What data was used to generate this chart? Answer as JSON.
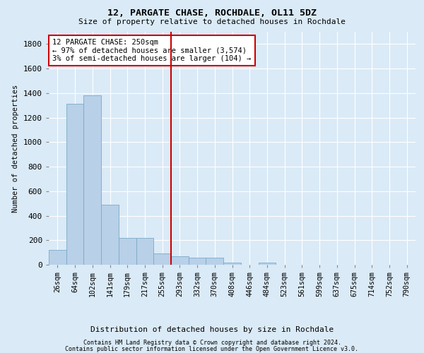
{
  "title": "12, PARGATE CHASE, ROCHDALE, OL11 5DZ",
  "subtitle": "Size of property relative to detached houses in Rochdale",
  "xlabel": "Distribution of detached houses by size in Rochdale",
  "ylabel": "Number of detached properties",
  "annotation_title": "12 PARGATE CHASE: 250sqm",
  "annotation_line1": "← 97% of detached houses are smaller (3,574)",
  "annotation_line2": "3% of semi-detached houses are larger (104) →",
  "footer_line1": "Contains HM Land Registry data © Crown copyright and database right 2024.",
  "footer_line2": "Contains public sector information licensed under the Open Government Licence v3.0.",
  "bar_color": "#b8d0e8",
  "bar_edge_color": "#7aaac8",
  "vline_color": "#cc0000",
  "background_color": "#daeaf7",
  "annotation_box_color": "#ffffff",
  "annotation_box_edge": "#cc0000",
  "grid_color": "#ffffff",
  "categories": [
    "26sqm",
    "64sqm",
    "102sqm",
    "141sqm",
    "179sqm",
    "217sqm",
    "255sqm",
    "293sqm",
    "332sqm",
    "370sqm",
    "408sqm",
    "446sqm",
    "484sqm",
    "523sqm",
    "561sqm",
    "599sqm",
    "637sqm",
    "675sqm",
    "714sqm",
    "752sqm",
    "790sqm"
  ],
  "values": [
    120,
    1310,
    1380,
    490,
    220,
    220,
    90,
    70,
    60,
    60,
    20,
    0,
    20,
    0,
    0,
    0,
    0,
    0,
    0,
    0,
    0
  ],
  "ylim": [
    0,
    1900
  ],
  "yticks": [
    0,
    200,
    400,
    600,
    800,
    1000,
    1200,
    1400,
    1600,
    1800
  ],
  "vline_x": 6.5
}
